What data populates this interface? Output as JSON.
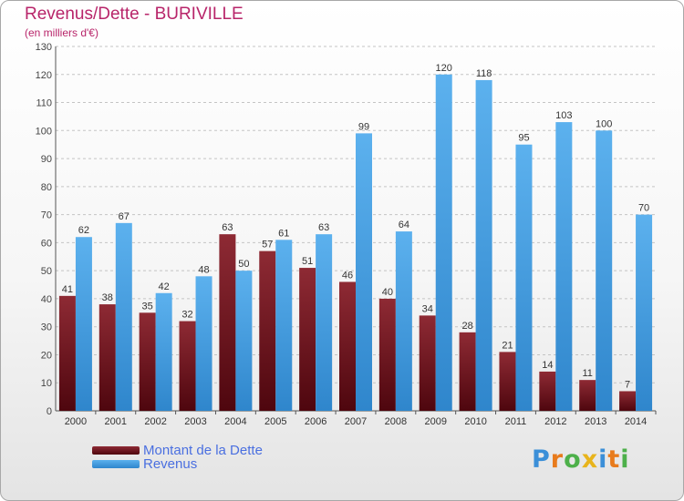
{
  "header": {
    "title": "Revenus/Dette - BURIVILLE",
    "subtitle": "(en milliers d'€)"
  },
  "chart_data": {
    "type": "bar",
    "categories": [
      "2000",
      "2001",
      "2002",
      "2003",
      "2004",
      "2005",
      "2006",
      "2007",
      "2008",
      "2009",
      "2010",
      "2011",
      "2012",
      "2013",
      "2014"
    ],
    "series": [
      {
        "name": "Montant de la Dette",
        "color": "#7a1420",
        "values": [
          41,
          38,
          35,
          32,
          63,
          57,
          51,
          46,
          40,
          34,
          28,
          21,
          14,
          11,
          7
        ]
      },
      {
        "name": "Revenus",
        "color": "#4aa3e6",
        "values": [
          62,
          67,
          42,
          48,
          50,
          61,
          63,
          99,
          64,
          120,
          118,
          95,
          103,
          100,
          70
        ]
      }
    ],
    "yticks": [
      0,
      10,
      20,
      30,
      40,
      50,
      60,
      70,
      80,
      90,
      100,
      110,
      120,
      130
    ],
    "ylim": [
      0,
      130
    ],
    "grid": true,
    "legend_position": "bottom-left"
  },
  "legend": {
    "items": [
      {
        "label": "Montant de la Dette",
        "color": "#7a1420"
      },
      {
        "label": "Revenus",
        "color": "#4aa3e6"
      }
    ]
  },
  "logo": {
    "letters": [
      {
        "char": "P",
        "color": "#3b8fd8"
      },
      {
        "char": "r",
        "color": "#e87b1c"
      },
      {
        "char": "o",
        "color": "#4db04a"
      },
      {
        "char": "x",
        "color": "#e8b41c"
      },
      {
        "char": "i",
        "color": "#3b8fd8"
      },
      {
        "char": "t",
        "color": "#e87b1c"
      },
      {
        "char": "i",
        "color": "#4db04a"
      }
    ]
  }
}
